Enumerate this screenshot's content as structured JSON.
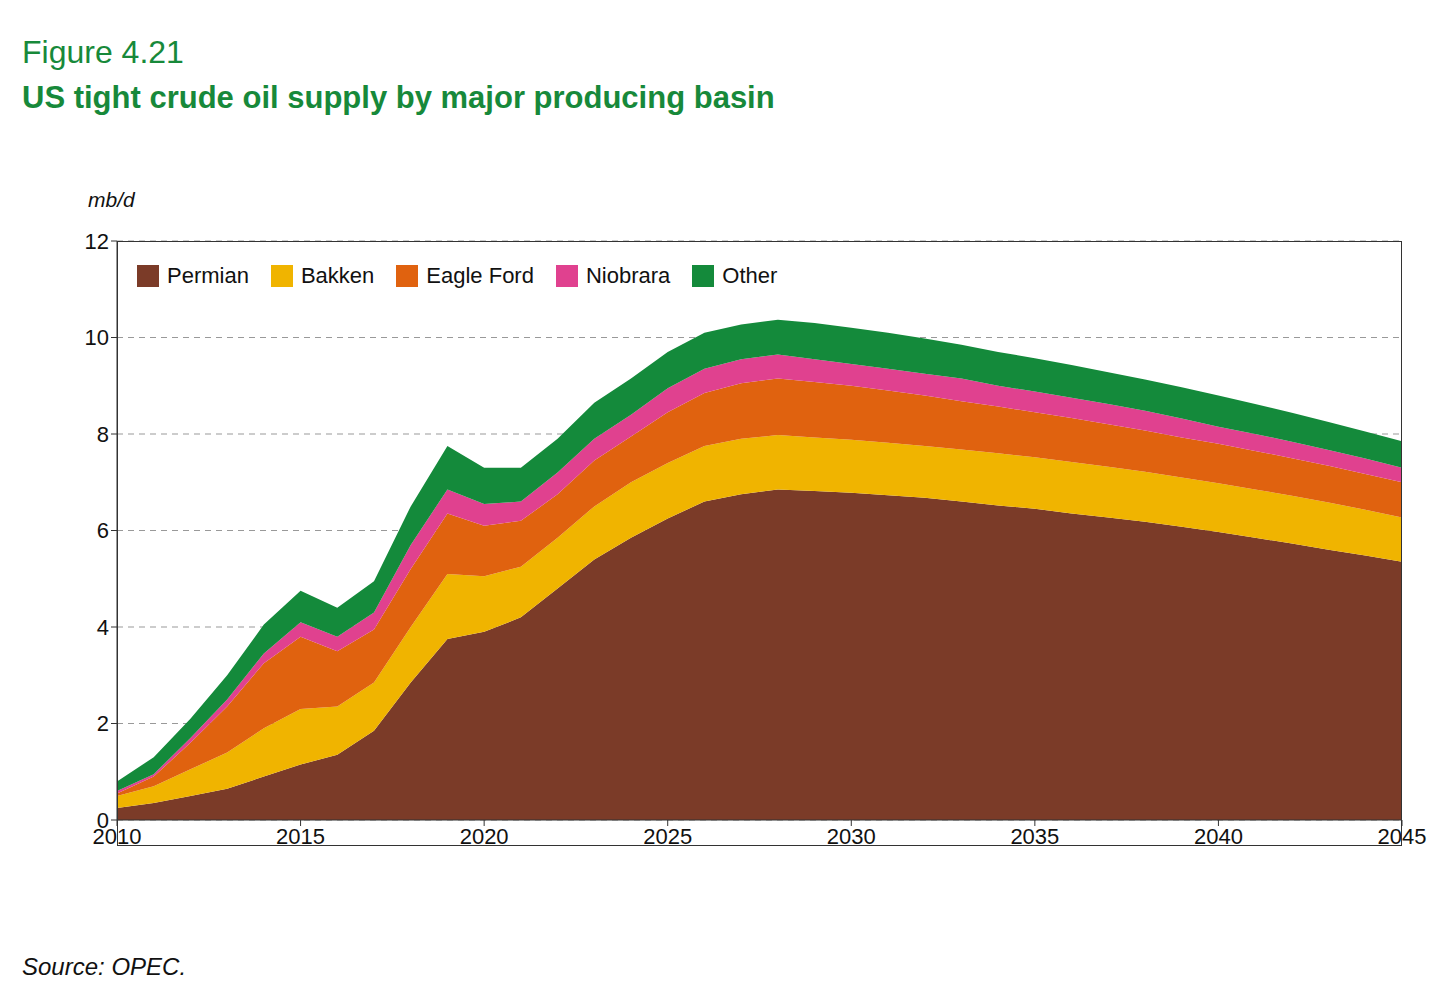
{
  "chart_data": {
    "type": "area",
    "figure": "Figure 4.21",
    "title": "US tight crude oil supply by major producing basin",
    "y_label": "mb/d",
    "source": "Source: OPEC.",
    "stacked": true,
    "grid": true,
    "legend": "top-left",
    "x": [
      2010,
      2011,
      2012,
      2013,
      2014,
      2015,
      2016,
      2017,
      2018,
      2019,
      2020,
      2021,
      2022,
      2023,
      2024,
      2025,
      2026,
      2027,
      2028,
      2029,
      2030,
      2031,
      2032,
      2033,
      2034,
      2035,
      2036,
      2037,
      2038,
      2039,
      2040,
      2041,
      2042,
      2043,
      2044,
      2045
    ],
    "xlim": [
      2010,
      2045
    ],
    "xticks": [
      2010,
      2015,
      2020,
      2025,
      2030,
      2035,
      2040,
      2045
    ],
    "ylim": [
      0,
      12
    ],
    "yticks": [
      0,
      2,
      4,
      6,
      8,
      10,
      12
    ],
    "series": [
      {
        "name": "Permian",
        "color": "#7b3b28",
        "values": [
          0.25,
          0.35,
          0.5,
          0.65,
          0.9,
          1.15,
          1.35,
          1.85,
          2.85,
          3.75,
          3.9,
          4.2,
          4.8,
          5.4,
          5.85,
          6.25,
          6.6,
          6.75,
          6.85,
          6.82,
          6.78,
          6.73,
          6.68,
          6.6,
          6.52,
          6.45,
          6.35,
          6.27,
          6.18,
          6.08,
          5.97,
          5.85,
          5.73,
          5.6,
          5.48,
          5.35
        ]
      },
      {
        "name": "Bakken",
        "color": "#f0b400",
        "values": [
          0.25,
          0.35,
          0.55,
          0.75,
          1.0,
          1.15,
          1.0,
          1.0,
          1.15,
          1.35,
          1.15,
          1.05,
          1.05,
          1.1,
          1.15,
          1.15,
          1.15,
          1.15,
          1.13,
          1.11,
          1.1,
          1.09,
          1.07,
          1.08,
          1.08,
          1.07,
          1.07,
          1.05,
          1.04,
          1.02,
          1.01,
          1.0,
          0.99,
          0.98,
          0.95,
          0.92
        ]
      },
      {
        "name": "Eagle Ford",
        "color": "#e0620f",
        "values": [
          0.05,
          0.2,
          0.55,
          0.95,
          1.35,
          1.5,
          1.15,
          1.1,
          1.2,
          1.25,
          1.05,
          0.95,
          0.9,
          0.95,
          0.95,
          1.05,
          1.1,
          1.15,
          1.17,
          1.15,
          1.12,
          1.08,
          1.05,
          1.0,
          0.97,
          0.93,
          0.91,
          0.88,
          0.85,
          0.83,
          0.82,
          0.8,
          0.78,
          0.76,
          0.74,
          0.73
        ]
      },
      {
        "name": "Niobrara",
        "color": "#e0418f",
        "values": [
          0.05,
          0.05,
          0.1,
          0.15,
          0.2,
          0.3,
          0.3,
          0.35,
          0.5,
          0.5,
          0.45,
          0.4,
          0.45,
          0.45,
          0.45,
          0.5,
          0.5,
          0.5,
          0.5,
          0.47,
          0.45,
          0.45,
          0.45,
          0.47,
          0.43,
          0.43,
          0.42,
          0.42,
          0.41,
          0.39,
          0.35,
          0.35,
          0.34,
          0.33,
          0.32,
          0.3
        ]
      },
      {
        "name": "Other",
        "color": "#148a3b",
        "values": [
          0.2,
          0.35,
          0.4,
          0.5,
          0.6,
          0.65,
          0.6,
          0.65,
          0.8,
          0.9,
          0.75,
          0.7,
          0.7,
          0.75,
          0.75,
          0.75,
          0.75,
          0.72,
          0.72,
          0.75,
          0.75,
          0.75,
          0.73,
          0.7,
          0.7,
          0.69,
          0.68,
          0.66,
          0.65,
          0.65,
          0.65,
          0.62,
          0.6,
          0.58,
          0.56,
          0.55
        ]
      }
    ]
  }
}
